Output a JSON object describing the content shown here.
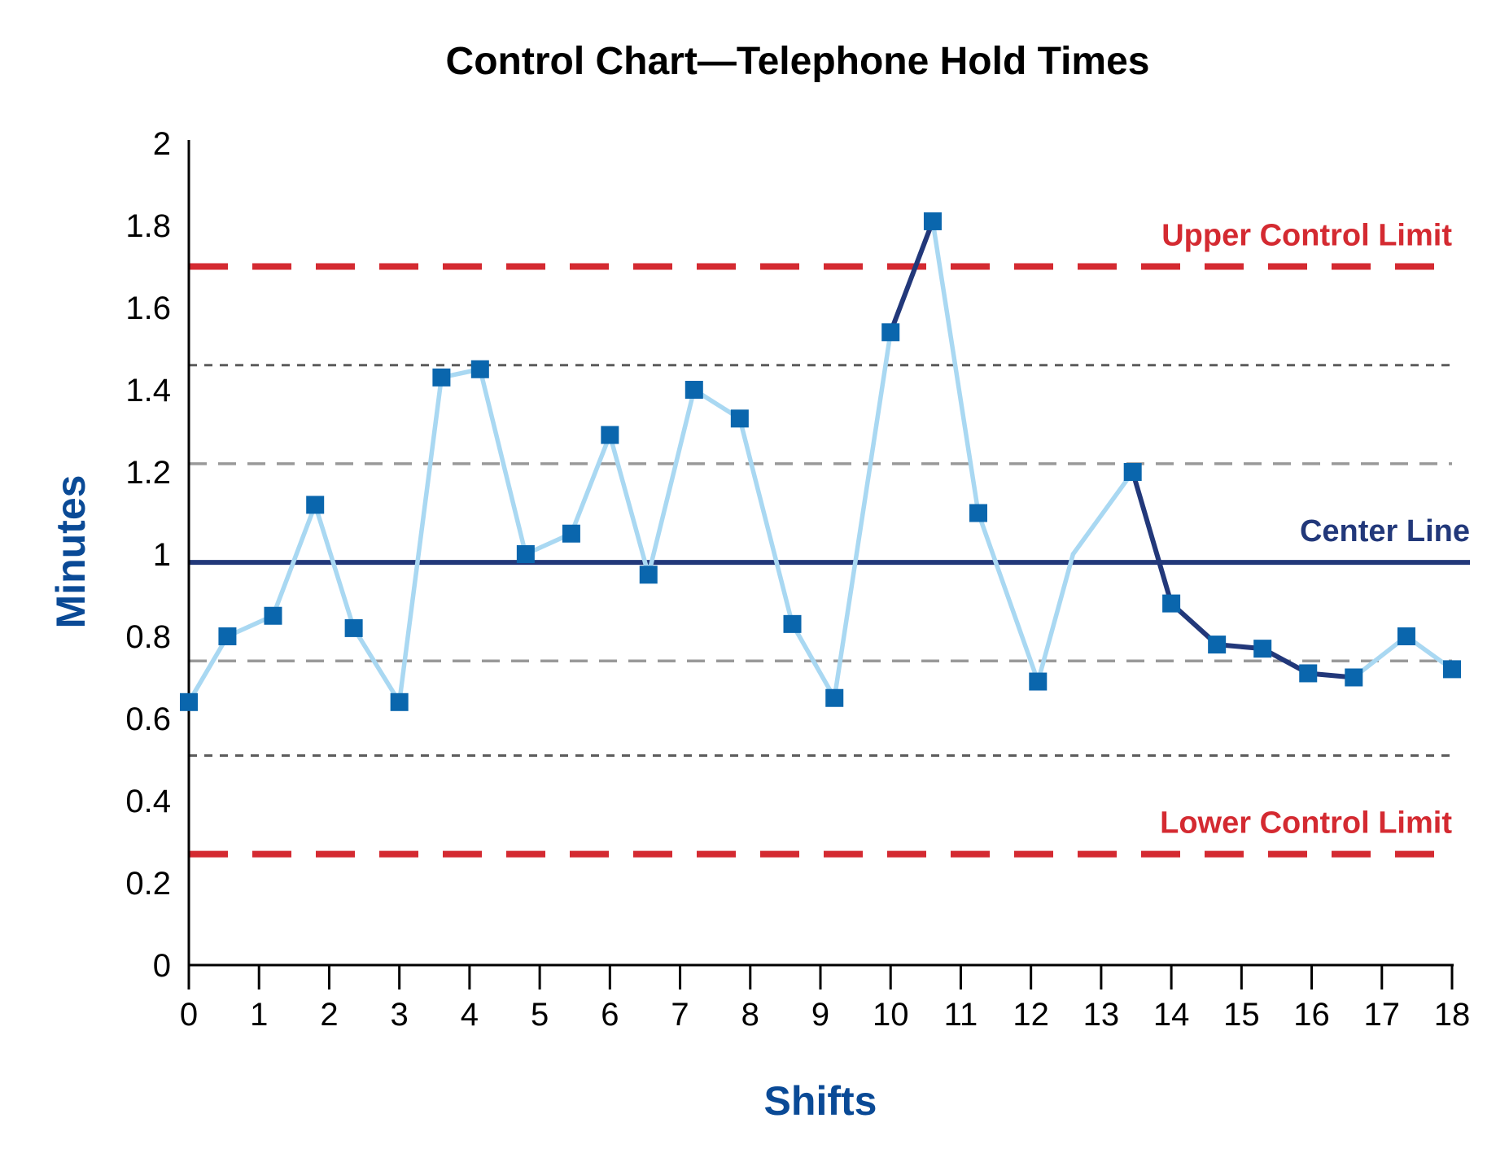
{
  "chart_data": {
    "type": "line",
    "title": "Control Chart—Telephone Hold Times",
    "xlabel": "Shifts",
    "ylabel": "Minutes",
    "xlim": [
      0,
      18
    ],
    "ylim": [
      0,
      2
    ],
    "x_ticks": [
      "0",
      "1",
      "2",
      "3",
      "4",
      "5",
      "6",
      "7",
      "8",
      "9",
      "10",
      "11",
      "12",
      "13",
      "14",
      "15",
      "16",
      "17",
      "18"
    ],
    "y_ticks": [
      "0",
      "0.2",
      "0.4",
      "0.6",
      "0.8",
      "1",
      "1.2",
      "1.4",
      "1.6",
      "1.8",
      "2"
    ],
    "grid": false,
    "series": [
      {
        "x": [
          0,
          0.55,
          1.2,
          1.8,
          2.35,
          3.0,
          3.6,
          4.15,
          4.8,
          5.45,
          6.0,
          6.55,
          7.2,
          7.85,
          8.6,
          9.2,
          10.0,
          10.6,
          11.25,
          12.1,
          12.6,
          13.45,
          14.0,
          14.65,
          15.3,
          15.95,
          16.6,
          17.35,
          18.0
        ],
        "y": [
          0.64,
          0.8,
          0.85,
          1.12,
          0.82,
          0.64,
          1.43,
          1.45,
          1.0,
          1.05,
          1.29,
          0.95,
          1.4,
          1.33,
          0.83,
          0.65,
          1.54,
          1.81,
          1.1,
          0.69,
          1.0,
          1.2,
          0.88,
          0.78,
          0.77,
          0.71,
          0.7,
          0.8,
          0.72
        ],
        "markers": [
          true,
          true,
          true,
          true,
          true,
          true,
          true,
          true,
          true,
          true,
          true,
          true,
          true,
          true,
          true,
          true,
          true,
          true,
          true,
          true,
          false,
          true,
          true,
          true,
          true,
          true,
          true,
          true,
          true
        ],
        "line_color": "#a9d8f2",
        "highlight_color": "#22387a",
        "marker_color": "#0a66ad",
        "highlight_segments": [
          [
            16,
            17
          ],
          [
            21,
            22
          ],
          [
            22,
            23
          ],
          [
            23,
            24
          ],
          [
            24,
            25
          ],
          [
            25,
            26
          ]
        ]
      }
    ],
    "reference_lines": [
      {
        "label": "Upper Control Limit",
        "y": 1.7,
        "color": "#d42a31",
        "style": "long-dash"
      },
      {
        "label": "",
        "y": 1.46,
        "color": "#5c5c5c",
        "style": "short-dash"
      },
      {
        "label": "",
        "y": 1.22,
        "color": "#999999",
        "style": "medium-dash"
      },
      {
        "label": "Center Line",
        "y": 0.98,
        "color": "#22387a",
        "style": "solid"
      },
      {
        "label": "",
        "y": 0.74,
        "color": "#999999",
        "style": "medium-dash"
      },
      {
        "label": "",
        "y": 0.51,
        "color": "#5c5c5c",
        "style": "short-dash"
      },
      {
        "label": "Lower Control Limit",
        "y": 0.27,
        "color": "#d42a31",
        "style": "long-dash"
      }
    ],
    "colors": {
      "title": "#000000",
      "axis_title": "#0a4a96",
      "axis": "#000000"
    }
  }
}
